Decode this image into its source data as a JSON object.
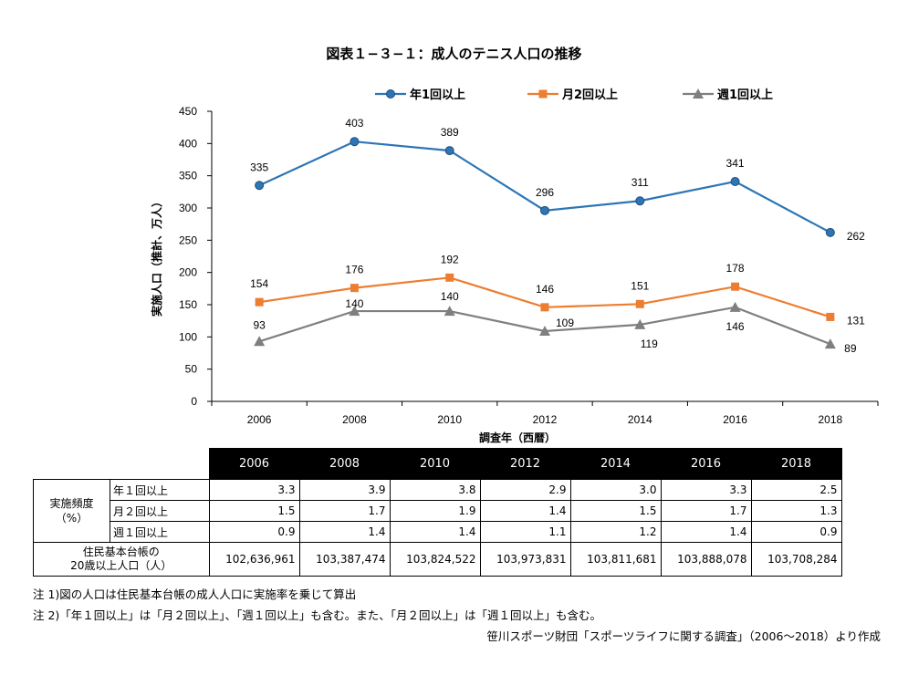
{
  "title": "図表１−３−１：成人のテニス人口の推移",
  "chart_data": {
    "type": "line",
    "categories": [
      "2006",
      "2008",
      "2010",
      "2012",
      "2014",
      "2016",
      "2018"
    ],
    "series": [
      {
        "name": "年1回以上",
        "values": [
          335,
          403,
          389,
          296,
          311,
          341,
          262
        ],
        "color": "#2e75b6"
      },
      {
        "name": "月2回以上",
        "values": [
          154,
          176,
          192,
          146,
          151,
          178,
          131
        ],
        "color": "#ed7d31"
      },
      {
        "name": "週1回以上",
        "values": [
          93,
          140,
          140,
          109,
          119,
          146,
          89
        ],
        "color": "#7f7f7f"
      }
    ],
    "ylim": [
      0,
      450
    ],
    "yticks": [
      0,
      50,
      100,
      150,
      200,
      250,
      300,
      350,
      400,
      450
    ],
    "xlabel": "調査年（西暦）",
    "ylabel": "実施人口（推計、万人）",
    "legend": "top",
    "grid": false
  },
  "table": {
    "years": [
      "2006",
      "2008",
      "2010",
      "2012",
      "2014",
      "2016",
      "2018"
    ],
    "group_label": "実施頻度\n（%）",
    "rows": [
      {
        "label": "年１回以上",
        "values": [
          "3.3",
          "3.9",
          "3.8",
          "2.9",
          "3.0",
          "3.3",
          "2.5"
        ]
      },
      {
        "label": "月２回以上",
        "values": [
          "1.5",
          "1.7",
          "1.9",
          "1.4",
          "1.5",
          "1.7",
          "1.3"
        ]
      },
      {
        "label": "週１回以上",
        "values": [
          "0.9",
          "1.4",
          "1.4",
          "1.1",
          "1.2",
          "1.4",
          "0.9"
        ]
      }
    ],
    "pop_label": "住民基本台帳の\n20歳以上人口（人）",
    "pop_values": [
      "102,636,961",
      "103,387,474",
      "103,824,522",
      "103,973,831",
      "103,811,681",
      "103,888,078",
      "103,708,284"
    ]
  },
  "notes": {
    "note1": "注 1)図の人口は住民基本台帳の成人人口に実施率を乗じて算出",
    "note2": "注 2)「年１回以上」は「月２回以上」、「週１回以上」も含む。また、「月２回以上」は「週１回以上」も含む。",
    "source": "笹川スポーツ財団「スポーツライフに関する調査」（2006〜2018）より作成"
  }
}
